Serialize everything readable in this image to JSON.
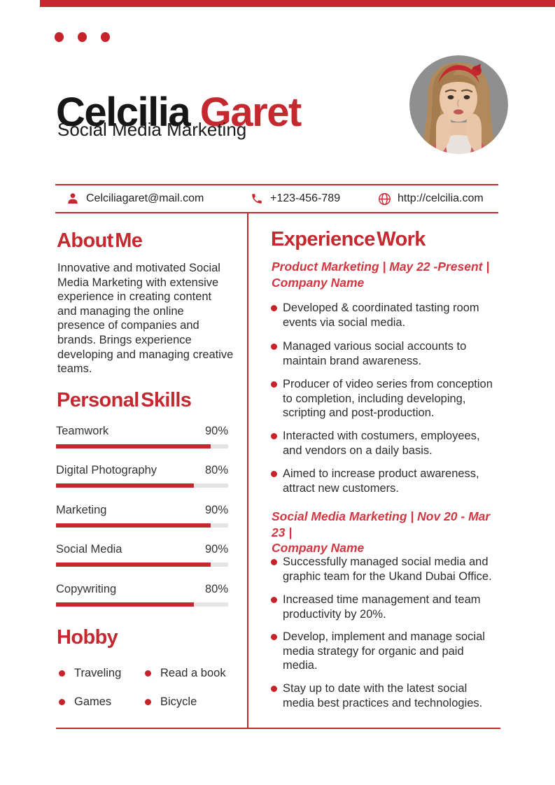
{
  "accent": "#c5282f",
  "header": {
    "first_name": "Celcilia",
    "last_name": "Garet",
    "subtitle": "Social Media Marketing"
  },
  "contact": {
    "email": "Celciliagaret@mail.com",
    "phone": "+123-456-789",
    "website": "http://celcilia.com"
  },
  "about": {
    "title": "About Me",
    "text": "Innovative and motivated Social Media Marketing with extensive experience in creating content and managing the online presence of companies and brands. Brings experience developing and managing creative teams."
  },
  "skills": {
    "title": "Personal Skills",
    "items": [
      {
        "label": "Teamwork",
        "percent": "90%",
        "value": 90
      },
      {
        "label": "Digital Photography",
        "percent": "80%",
        "value": 80
      },
      {
        "label": "Marketing",
        "percent": "90%",
        "value": 90
      },
      {
        "label": "Social Media",
        "percent": "90%",
        "value": 90
      },
      {
        "label": "Copywriting",
        "percent": "80%",
        "value": 80
      }
    ]
  },
  "hobby": {
    "title": "Hobby",
    "items": [
      "Traveling",
      "Read a book",
      "Games",
      "Bicycle"
    ]
  },
  "experience": {
    "title": "Experience Work",
    "jobs": [
      {
        "role_line": "Product Marketing | May 22 -Present |",
        "company_line": "Company Name",
        "bullets": [
          "Developed & coordinated tasting room events via social media.",
          "Managed various social accounts to maintain brand awareness.",
          "Producer of video series from conception to completion, including developing, scripting and post-production.",
          "Interacted with costumers, employees, and vendors on a daily basis.",
          "Aimed to increase product awareness, attract new customers."
        ]
      },
      {
        "role_line": "Social Media Marketing | Nov 20 - Mar 23 |",
        "company_line": "Company Name",
        "bullets": [
          "Successfully managed social media and graphic team for the Ukand Dubai Office.",
          "Increased time management and team productivity by 20%.",
          "Develop, implement and manage social media strategy for organic and paid media.",
          "Stay up to date with the latest social media best practices and technologies."
        ]
      }
    ]
  }
}
